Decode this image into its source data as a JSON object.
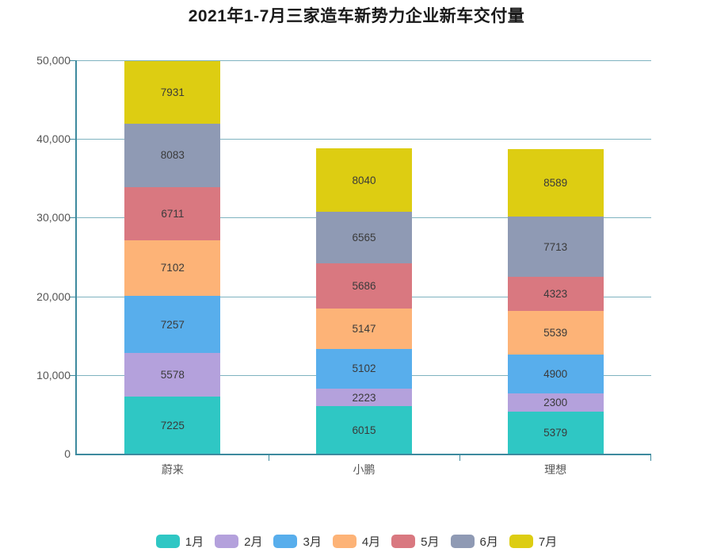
{
  "title": "2021年1-7月三家造车新势力企业新车交付量",
  "chart_data": {
    "type": "bar",
    "stacked": true,
    "title": "2021年1-7月三家造车新势力企业新车交付量",
    "categories": [
      "蔚来",
      "小鹏",
      "理想"
    ],
    "series": [
      {
        "name": "1月",
        "color": "#2fc7c4",
        "values": [
          7225,
          6015,
          5379
        ]
      },
      {
        "name": "2月",
        "color": "#b4a1dc",
        "values": [
          5578,
          2223,
          2300
        ]
      },
      {
        "name": "3月",
        "color": "#58aeec",
        "values": [
          7257,
          5102,
          4900
        ]
      },
      {
        "name": "4月",
        "color": "#fdb377",
        "values": [
          7102,
          5147,
          5539
        ]
      },
      {
        "name": "5月",
        "color": "#d97880",
        "values": [
          6711,
          5686,
          4323
        ]
      },
      {
        "name": "6月",
        "color": "#8f9ab4",
        "values": [
          8083,
          6565,
          7713
        ]
      },
      {
        "name": "7月",
        "color": "#ddcd12",
        "values": [
          7931,
          8040,
          8589
        ]
      }
    ],
    "xlabel": "",
    "ylabel": "",
    "ylim": [
      0,
      50000
    ],
    "ytick_interval": 10000,
    "ytick_labels": [
      "0",
      "10,000",
      "20,000",
      "30,000",
      "40,000",
      "50,000"
    ],
    "grid": true,
    "legend_position": "bottom",
    "value_labels": true
  },
  "colors": {
    "axis": "#3d8a9e",
    "gridline": "#7fb3c0",
    "tick_label": "#555555",
    "value_label": "#3a3a3a"
  }
}
